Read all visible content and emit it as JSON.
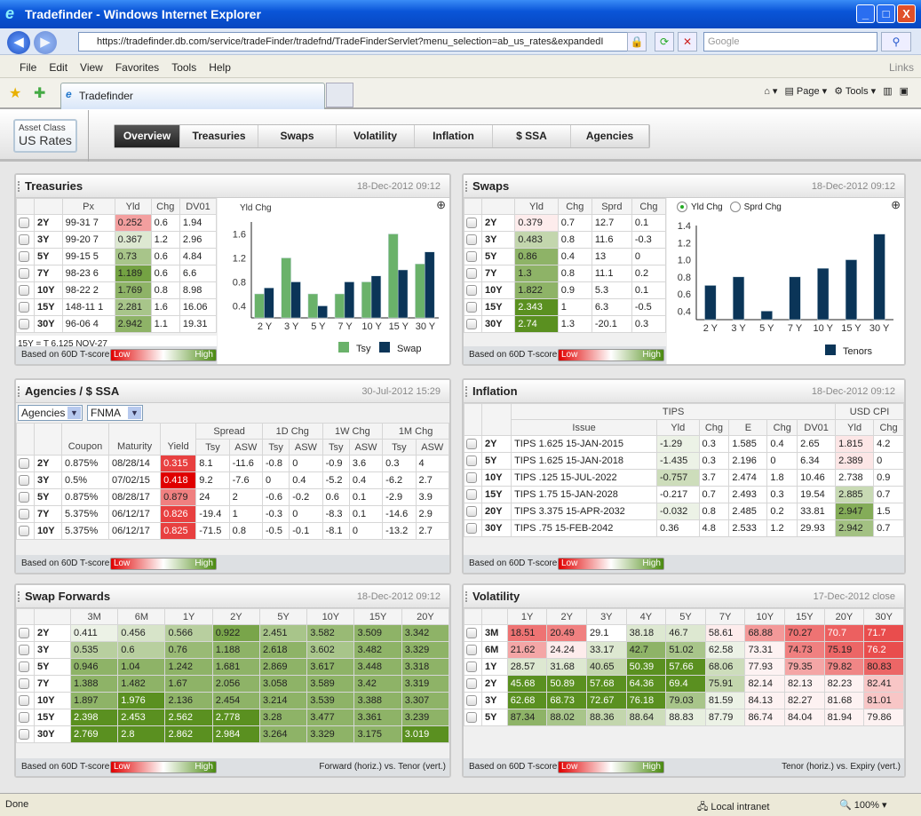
{
  "window": {
    "title": "Tradefinder - Windows Internet Explorer",
    "minimize": "_",
    "maximize": "□",
    "close": "X"
  },
  "browser": {
    "url": "https://tradefinder.db.com/service/tradeFinder/tradefnd/TradeFinderServlet?menu_selection=ab_us_rates&expandedI",
    "search_placeholder": "Google",
    "menu": [
      "File",
      "Edit",
      "View",
      "Favorites",
      "Tools",
      "Help"
    ],
    "links": "Links",
    "tab_title": "Tradefinder",
    "tools": {
      "page": "Page",
      "tools": "Tools"
    },
    "status": "Done",
    "zone": "Local intranet",
    "zoom": "100%"
  },
  "app": {
    "asset_class_label": "Asset Class",
    "asset_class": "US Rates",
    "tabs": [
      "Overview",
      "Treasuries",
      "Swaps",
      "Volatility",
      "Inflation",
      "$ SSA",
      "Agencies"
    ],
    "active_tab": "Overview"
  },
  "legend": {
    "label": "Based on 60D T-score",
    "low": "Low",
    "high": "High"
  },
  "colors": {
    "heat_high": "#5a9020",
    "heat_low": "#e00000",
    "tsy_bar": "#6ab26a",
    "swap_bar": "#0b3558"
  },
  "treasuries": {
    "title": "Treasuries",
    "timestamp": "18-Dec-2012 09:12",
    "note": "15Y = T 6.125 NOV-27",
    "header_rows": [
      [
        {
          "text": "Px"
        },
        {
          "text": "Yld"
        },
        {
          "text": "Chg"
        },
        {
          "text": "DV01"
        }
      ]
    ],
    "rows": [
      {
        "cells": [
          "2Y",
          "99-31 7",
          "0.252",
          "0.6",
          "1.94"
        ],
        "heat": [
          null,
          null,
          -1.5,
          null,
          null
        ]
      },
      {
        "cells": [
          "3Y",
          "99-20 7",
          "0.367",
          "1.2",
          "2.96"
        ],
        "heat": [
          null,
          null,
          0.5,
          null,
          null
        ]
      },
      {
        "cells": [
          "5Y",
          "99-15 5",
          "0.73",
          "0.6",
          "4.84"
        ],
        "heat": [
          null,
          null,
          1.5,
          null,
          null
        ]
      },
      {
        "cells": [
          "7Y",
          "98-23 6",
          "1.189",
          "0.6",
          "6.6"
        ],
        "heat": [
          null,
          null,
          2.5,
          null,
          null
        ]
      },
      {
        "cells": [
          "10Y",
          "98-22 2",
          "1.769",
          "0.8",
          "8.98"
        ],
        "heat": [
          null,
          null,
          2,
          null,
          null
        ]
      },
      {
        "cells": [
          "15Y",
          "148-11 1",
          "2.281",
          "1.6",
          "16.06"
        ],
        "heat": [
          null,
          null,
          1.5,
          null,
          null
        ]
      },
      {
        "cells": [
          "30Y",
          "96-06 4",
          "2.942",
          "1.1",
          "19.31"
        ],
        "heat": [
          null,
          null,
          2,
          null,
          null
        ]
      }
    ]
  },
  "swaps": {
    "title": "Swaps",
    "timestamp": "18-Dec-2012 09:12",
    "radio": [
      "Yld Chg",
      "Sprd Chg"
    ],
    "radio_selected": "Yld Chg",
    "header_rows": [
      [
        {
          "text": "Yld"
        },
        {
          "text": "Chg"
        },
        {
          "text": "Sprd"
        },
        {
          "text": "Chg"
        }
      ]
    ],
    "rows": [
      {
        "cells": [
          "2Y",
          "0.379",
          "0.7",
          "12.7",
          "0.1"
        ],
        "heat": [
          null,
          -0.3,
          null,
          null,
          null
        ]
      },
      {
        "cells": [
          "3Y",
          "0.483",
          "0.8",
          "11.6",
          "-0.3"
        ],
        "heat": [
          null,
          1,
          null,
          null,
          null
        ]
      },
      {
        "cells": [
          "5Y",
          "0.86",
          "0.4",
          "13",
          "0"
        ],
        "heat": [
          null,
          2,
          null,
          null,
          null
        ]
      },
      {
        "cells": [
          "7Y",
          "1.3",
          "0.8",
          "11.1",
          "0.2"
        ],
        "heat": [
          null,
          2,
          null,
          null,
          null
        ]
      },
      {
        "cells": [
          "10Y",
          "1.822",
          "0.9",
          "5.3",
          "0.1"
        ],
        "heat": [
          null,
          2,
          null,
          null,
          null
        ]
      },
      {
        "cells": [
          "15Y",
          "2.343",
          "1",
          "6.3",
          "-0.5"
        ],
        "heat": [
          null,
          3,
          null,
          null,
          null
        ]
      },
      {
        "cells": [
          "30Y",
          "2.74",
          "1.3",
          "-20.1",
          "0.3"
        ],
        "heat": [
          null,
          3,
          null,
          null,
          null
        ]
      }
    ]
  },
  "agencies": {
    "title": "Agencies / $ SSA",
    "timestamp": "30-Jul-2012 15:29",
    "select1": "Agencies",
    "select2": "FNMA",
    "header_rows": [
      [
        {
          "text": "Coupon",
          "rowspan": 2
        },
        {
          "text": "Maturity",
          "rowspan": 2
        },
        {
          "text": "Yield",
          "rowspan": 2
        },
        {
          "text": "Spread",
          "colspan": 2
        },
        {
          "text": "1D Chg",
          "colspan": 2
        },
        {
          "text": "1W Chg",
          "colspan": 2
        },
        {
          "text": "1M Chg",
          "colspan": 2
        }
      ],
      [
        {
          "text": "Tsy"
        },
        {
          "text": "ASW"
        },
        {
          "text": "Tsy"
        },
        {
          "text": "ASW"
        },
        {
          "text": "Tsy"
        },
        {
          "text": "ASW"
        },
        {
          "text": "Tsy"
        },
        {
          "text": "ASW"
        }
      ]
    ],
    "rows": [
      {
        "cells": [
          "2Y",
          "0.875%",
          "08/28/14",
          "0.315",
          "8.1",
          "-11.6",
          "-0.8",
          "0",
          "-0.9",
          "3.6",
          "0.3",
          "4"
        ],
        "heat": [
          null,
          null,
          null,
          -3
        ]
      },
      {
        "cells": [
          "3Y",
          "0.5%",
          "07/02/15",
          "0.418",
          "9.2",
          "-7.6",
          "0",
          "0.4",
          "-5.2",
          "0.4",
          "-6.2",
          "2.7"
        ],
        "heat": [
          null,
          null,
          null,
          -4
        ]
      },
      {
        "cells": [
          "5Y",
          "0.875%",
          "08/28/17",
          "0.879",
          "24",
          "2",
          "-0.6",
          "-0.2",
          "0.6",
          "0.1",
          "-2.9",
          "3.9"
        ],
        "heat": [
          null,
          null,
          null,
          -2
        ]
      },
      {
        "cells": [
          "7Y",
          "5.375%",
          "06/12/17",
          "0.826",
          "-19.4",
          "1",
          "-0.3",
          "0",
          "-8.3",
          "0.1",
          "-14.6",
          "2.9"
        ],
        "heat": [
          null,
          null,
          null,
          -3
        ]
      },
      {
        "cells": [
          "10Y",
          "5.375%",
          "06/12/17",
          "0.825",
          "-71.5",
          "0.8",
          "-0.5",
          "-0.1",
          "-8.1",
          "0",
          "-13.2",
          "2.7"
        ],
        "heat": [
          null,
          null,
          null,
          -3
        ]
      }
    ]
  },
  "inflation": {
    "title": "Inflation",
    "timestamp": "18-Dec-2012 09:12",
    "header_rows": [
      [
        {
          "text": "TIPS",
          "colspan": 6
        },
        {
          "text": "USD CPI",
          "colspan": 2
        }
      ],
      [
        {
          "text": "Issue"
        },
        {
          "text": "Yld"
        },
        {
          "text": "Chg"
        },
        {
          "text": "E"
        },
        {
          "text": "Chg"
        },
        {
          "text": "DV01"
        },
        {
          "text": "Yld"
        },
        {
          "text": "Chg"
        }
      ]
    ],
    "rows": [
      {
        "cells": [
          "2Y",
          "TIPS 1.625 15-JAN-2015",
          "-1.29",
          "0.3",
          "1.585",
          "0.4",
          "2.65",
          "1.815",
          "4.2"
        ],
        "heat": [
          null,
          null,
          0.2,
          null,
          null,
          null,
          null,
          -0.4
        ]
      },
      {
        "cells": [
          "5Y",
          "TIPS 1.625 15-JAN-2018",
          "-1.435",
          "0.3",
          "2.196",
          "0",
          "6.34",
          "2.389",
          "0"
        ],
        "heat": [
          null,
          null,
          0.2,
          null,
          null,
          null,
          null,
          -0.4
        ]
      },
      {
        "cells": [
          "10Y",
          "TIPS .125 15-JUL-2022",
          "-0.757",
          "3.7",
          "2.474",
          "1.8",
          "10.46",
          "2.738",
          "0.9"
        ],
        "heat": [
          null,
          null,
          0.8,
          null,
          null,
          null,
          null,
          null
        ]
      },
      {
        "cells": [
          "15Y",
          "TIPS 1.75 15-JAN-2028",
          "-0.217",
          "0.7",
          "2.493",
          "0.3",
          "19.54",
          "2.885",
          "0.7"
        ],
        "heat": [
          null,
          null,
          null,
          null,
          null,
          null,
          null,
          0.9
        ]
      },
      {
        "cells": [
          "20Y",
          "TIPS 3.375 15-APR-2032",
          "-0.032",
          "0.8",
          "2.485",
          "0.2",
          "33.81",
          "2.947",
          "1.5"
        ],
        "heat": [
          null,
          null,
          0.2,
          null,
          null,
          null,
          null,
          2.2
        ]
      },
      {
        "cells": [
          "30Y",
          "TIPS .75 15-FEB-2042",
          "0.36",
          "4.8",
          "2.533",
          "1.2",
          "29.93",
          "2.942",
          "0.7"
        ],
        "heat": [
          null,
          null,
          null,
          null,
          null,
          null,
          null,
          1.6
        ]
      }
    ]
  },
  "forwards": {
    "title": "Swap Forwards",
    "timestamp": "18-Dec-2012 09:12",
    "axis_note": "Forward (horiz.) vs. Tenor (vert.)",
    "header_rows": [
      [
        {
          "text": "3M"
        },
        {
          "text": "6M"
        },
        {
          "text": "1Y"
        },
        {
          "text": "2Y"
        },
        {
          "text": "5Y"
        },
        {
          "text": "10Y"
        },
        {
          "text": "15Y"
        },
        {
          "text": "20Y"
        }
      ]
    ],
    "rows": [
      {
        "cells": [
          "2Y",
          "0.411",
          "0.456",
          "0.566",
          "0.922",
          "2.451",
          "3.582",
          "3.509",
          "3.342"
        ],
        "heat": [
          null,
          0.2,
          0.6,
          1.2,
          2.4,
          1.5,
          1.8,
          2,
          2
        ]
      },
      {
        "cells": [
          "3Y",
          "0.535",
          "0.6",
          "0.76",
          "1.188",
          "2.618",
          "3.602",
          "3.482",
          "3.329"
        ],
        "heat": [
          null,
          1.2,
          1.2,
          1.8,
          2,
          2,
          1.5,
          2,
          2
        ]
      },
      {
        "cells": [
          "5Y",
          "0.946",
          "1.04",
          "1.242",
          "1.681",
          "2.869",
          "3.617",
          "3.448",
          "3.318"
        ],
        "heat": [
          null,
          2,
          2,
          2,
          2,
          2,
          2,
          2,
          2
        ]
      },
      {
        "cells": [
          "7Y",
          "1.388",
          "1.482",
          "1.67",
          "2.056",
          "3.058",
          "3.589",
          "3.42",
          "3.319"
        ],
        "heat": [
          null,
          2,
          2,
          2,
          2,
          2,
          2,
          2,
          2
        ]
      },
      {
        "cells": [
          "10Y",
          "1.897",
          "1.976",
          "2.136",
          "2.454",
          "3.214",
          "3.539",
          "3.388",
          "3.307"
        ],
        "heat": [
          null,
          2,
          3,
          2,
          2,
          2,
          2,
          2,
          2
        ]
      },
      {
        "cells": [
          "15Y",
          "2.398",
          "2.453",
          "2.562",
          "2.778",
          "3.28",
          "3.477",
          "3.361",
          "3.239"
        ],
        "heat": [
          null,
          3,
          3,
          3,
          3,
          2,
          2,
          2,
          2
        ]
      },
      {
        "cells": [
          "30Y",
          "2.769",
          "2.8",
          "2.862",
          "2.984",
          "3.264",
          "3.329",
          "3.175",
          "3.019"
        ],
        "heat": [
          null,
          3,
          3,
          3,
          3,
          2,
          2,
          2,
          3
        ]
      }
    ]
  },
  "volatility": {
    "title": "Volatility",
    "timestamp": "17-Dec-2012 close",
    "axis_note": "Tenor (horiz.) vs. Expiry (vert.)",
    "header_rows": [
      [
        {
          "text": "1Y"
        },
        {
          "text": "2Y"
        },
        {
          "text": "3Y"
        },
        {
          "text": "4Y"
        },
        {
          "text": "5Y"
        },
        {
          "text": "7Y"
        },
        {
          "text": "10Y"
        },
        {
          "text": "15Y"
        },
        {
          "text": "20Y"
        },
        {
          "text": "30Y"
        }
      ]
    ],
    "rows": [
      {
        "cells": [
          "3M",
          "18.51",
          "20.49",
          "29.1",
          "38.18",
          "46.7",
          "58.61",
          "68.88",
          "70.27",
          "70.7",
          "71.7"
        ],
        "heat": [
          null,
          -2.2,
          -2,
          null,
          0.5,
          0.5,
          -0.3,
          -1.6,
          -2.2,
          -2.5,
          -2.8
        ]
      },
      {
        "cells": [
          "6M",
          "21.62",
          "24.24",
          "33.17",
          "42.7",
          "51.02",
          "62.58",
          "73.31",
          "74.73",
          "75.19",
          "76.2"
        ],
        "heat": [
          null,
          -1.4,
          -0.3,
          0.5,
          2,
          1.5,
          0.2,
          -0.2,
          -2,
          -2.4,
          -2.8
        ]
      },
      {
        "cells": [
          "1Y",
          "28.57",
          "31.68",
          "40.65",
          "50.39",
          "57.66",
          "68.06",
          "77.93",
          "79.35",
          "79.82",
          "80.83"
        ],
        "heat": [
          null,
          0.5,
          0.5,
          1,
          3,
          3,
          0.8,
          -0.2,
          -1.4,
          -1.9,
          -2.4
        ]
      },
      {
        "cells": [
          "2Y",
          "45.68",
          "50.89",
          "57.68",
          "64.36",
          "69.4",
          "75.91",
          "82.14",
          "82.13",
          "82.23",
          "82.41"
        ],
        "heat": [
          null,
          3,
          3,
          3,
          3,
          3,
          1,
          -0.2,
          -0.2,
          -0.2,
          -0.9
        ]
      },
      {
        "cells": [
          "3Y",
          "62.68",
          "68.73",
          "72.67",
          "76.18",
          "79.03",
          "81.59",
          "84.13",
          "82.27",
          "81.68",
          "81.01"
        ],
        "heat": [
          null,
          3,
          3,
          3,
          3,
          1.5,
          0.2,
          -0.2,
          -0.2,
          -0.2,
          -0.9
        ]
      },
      {
        "cells": [
          "5Y",
          "87.34",
          "88.02",
          "88.36",
          "88.64",
          "88.83",
          "87.79",
          "86.74",
          "84.04",
          "81.94",
          "79.86"
        ],
        "heat": [
          null,
          2,
          1.5,
          1,
          0.8,
          0.3,
          0.2,
          -0.2,
          -0.2,
          -0.2,
          -0.2
        ]
      }
    ]
  },
  "chart_data": [
    {
      "type": "bar",
      "title": "",
      "ylabel": "Yld Chg",
      "categories": [
        "2 Y",
        "3 Y",
        "5 Y",
        "7 Y",
        "10 Y",
        "15 Y",
        "30 Y"
      ],
      "ylim": [
        0.2,
        1.8
      ],
      "yticks": [
        "0.4",
        "0.8",
        "1.2",
        "1.6"
      ],
      "legend": "bottom",
      "series": [
        {
          "name": "Tsy",
          "values": [
            0.6,
            1.2,
            0.6,
            0.6,
            0.8,
            1.6,
            1.1
          ]
        },
        {
          "name": "Swap",
          "values": [
            0.7,
            0.8,
            0.4,
            0.8,
            0.9,
            1.0,
            1.3
          ]
        }
      ]
    },
    {
      "type": "bar",
      "title": "",
      "categories": [
        "2 Y",
        "3 Y",
        "5 Y",
        "7 Y",
        "10 Y",
        "15 Y",
        "30 Y"
      ],
      "ylim": [
        0.3,
        1.4
      ],
      "yticks": [
        "0.4",
        "0.6",
        "0.8",
        "1.0",
        "1.2",
        "1.4"
      ],
      "legend": "bottom",
      "series": [
        {
          "name": "Tenors",
          "values": [
            0.7,
            0.8,
            0.4,
            0.8,
            0.9,
            1.0,
            1.3
          ]
        }
      ]
    }
  ]
}
